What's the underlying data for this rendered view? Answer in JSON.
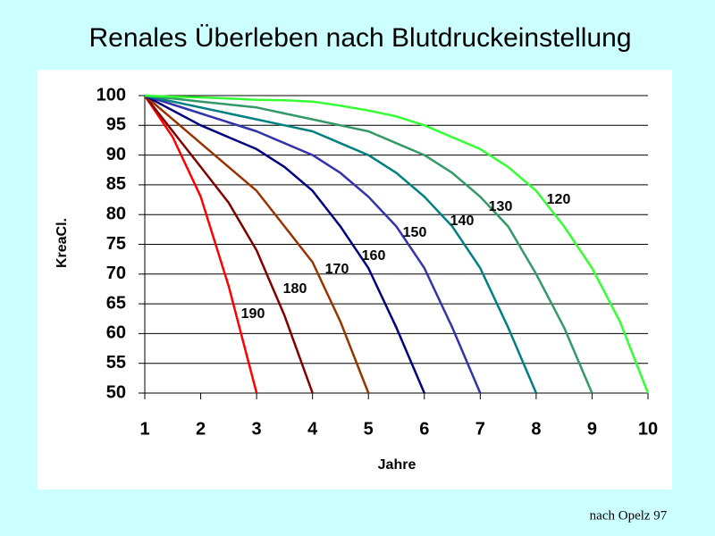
{
  "chart_data": {
    "type": "line",
    "title": "Renales Überleben nach Blutdruckeinstellung",
    "x_label": "Jahre",
    "y_label": "KreaCl.",
    "source": "nach Opelz 97",
    "x": [
      1,
      1.5,
      2,
      2.5,
      3,
      3.5,
      4,
      4.5,
      5,
      5.5,
      6,
      6.5,
      7,
      7.5,
      8,
      8.5,
      9,
      9.5,
      10
    ],
    "xlim": [
      1,
      10
    ],
    "xticks": [
      1,
      2,
      3,
      4,
      5,
      6,
      7,
      8,
      9,
      10
    ],
    "ylim": [
      50,
      100
    ],
    "yticks": [
      50,
      55,
      60,
      65,
      70,
      75,
      80,
      85,
      90,
      95,
      100
    ],
    "grid": true,
    "series": [
      {
        "name": "190",
        "color": "#ff0000",
        "values": [
          100,
          93,
          83,
          68,
          50,
          null,
          null,
          null,
          null,
          null,
          null,
          null,
          null,
          null,
          null,
          null,
          null,
          null,
          null
        ]
      },
      {
        "name": "180",
        "color": "#800000",
        "values": [
          100,
          94,
          88,
          82,
          74,
          63,
          50,
          null,
          null,
          null,
          null,
          null,
          null,
          null,
          null,
          null,
          null,
          null,
          null
        ]
      },
      {
        "name": "170",
        "color": "#993300",
        "values": [
          100,
          96,
          92,
          88,
          84,
          78,
          72,
          62,
          50,
          null,
          null,
          null,
          null,
          null,
          null,
          null,
          null,
          null,
          null
        ]
      },
      {
        "name": "160",
        "color": "#000080",
        "values": [
          100,
          97.5,
          95,
          93,
          91,
          88,
          84,
          78,
          71,
          61,
          50,
          null,
          null,
          null,
          null,
          null,
          null,
          null,
          null
        ]
      },
      {
        "name": "150",
        "color": "#3333aa",
        "values": [
          100,
          98.5,
          97,
          95.5,
          94,
          92,
          90,
          87,
          83,
          78,
          71,
          61,
          50,
          null,
          null,
          null,
          null,
          null,
          null
        ]
      },
      {
        "name": "140",
        "color": "#008080",
        "values": [
          100,
          99,
          98,
          97,
          96,
          95,
          94,
          92,
          90,
          87,
          83,
          78,
          71,
          61,
          50,
          null,
          null,
          null,
          null
        ]
      },
      {
        "name": "130",
        "color": "#339966",
        "values": [
          100,
          99.5,
          99,
          98.5,
          98,
          97,
          96,
          95,
          94,
          92,
          90,
          87,
          83,
          78,
          70,
          61,
          50,
          null,
          null
        ]
      },
      {
        "name": "120",
        "color": "#33ff33",
        "values": [
          100,
          99.8,
          99.7,
          99.5,
          99.3,
          99.2,
          99,
          98.3,
          97.5,
          96.5,
          95,
          93,
          91,
          88,
          84,
          78,
          71,
          62,
          50
        ]
      }
    ]
  }
}
